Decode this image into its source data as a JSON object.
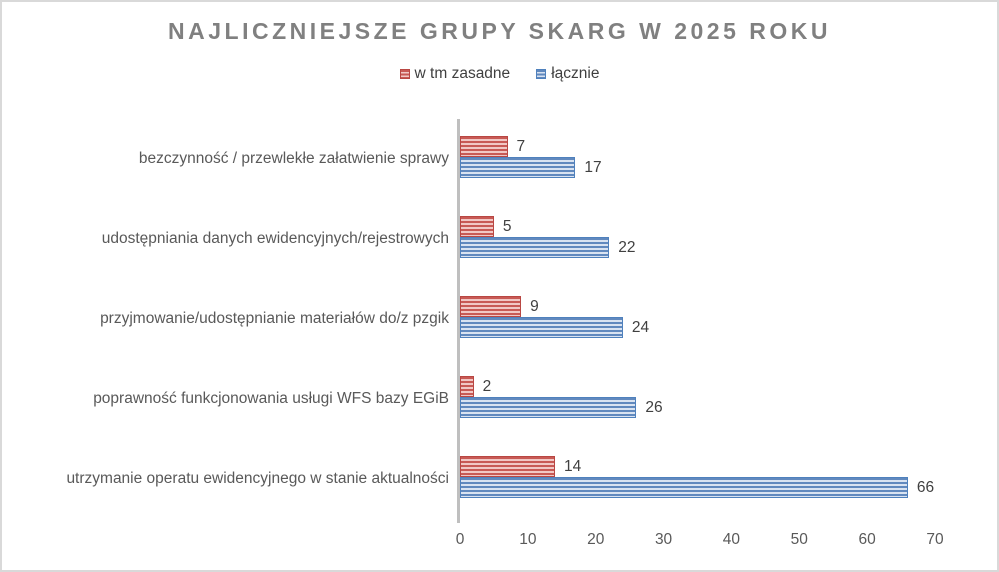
{
  "title": "NAJLICZNIEJSZE GRUPY SKARG W 2025 ROKU",
  "chart_data": {
    "type": "bar",
    "orientation": "horizontal",
    "title": "NAJLICZNIEJSZE GRUPY SKARG W 2025 ROKU",
    "categories": [
      "bezczynność / przewlekłe załatwienie sprawy",
      "udostępniania danych ewidencyjnych/rejestrowych",
      "przyjmowanie/udostępnianie materiałów do/z pzgik",
      "poprawność funkcjonowania usługi WFS bazy EGiB",
      "utrzymanie operatu ewidencyjnego w stanie aktualności"
    ],
    "series": [
      {
        "name": "w tm zasadne",
        "color": "#c0504d",
        "values": [
          7,
          5,
          9,
          2,
          14
        ]
      },
      {
        "name": "łącznie",
        "color": "#4f81bd",
        "values": [
          17,
          22,
          24,
          26,
          66
        ]
      }
    ],
    "xlim": [
      0,
      70
    ],
    "xticks": [
      0,
      10,
      20,
      30,
      40,
      50,
      60,
      70
    ],
    "legend_position": "top",
    "data_labels": true,
    "grid": false
  },
  "colors": {
    "title_text": "#808080",
    "category_text": "#595959",
    "value_text": "#404040",
    "tick_text": "#595959",
    "axis_line": "#bfbfbf",
    "frame_border": "#d9d9d9",
    "red_fill_dark": "#c85a55",
    "red_fill_light": "#f1c8c5",
    "red_border": "#b94743",
    "blue_fill_dark": "#6189be",
    "blue_fill_light": "#d9e3f1",
    "blue_border": "#4f81bd"
  }
}
